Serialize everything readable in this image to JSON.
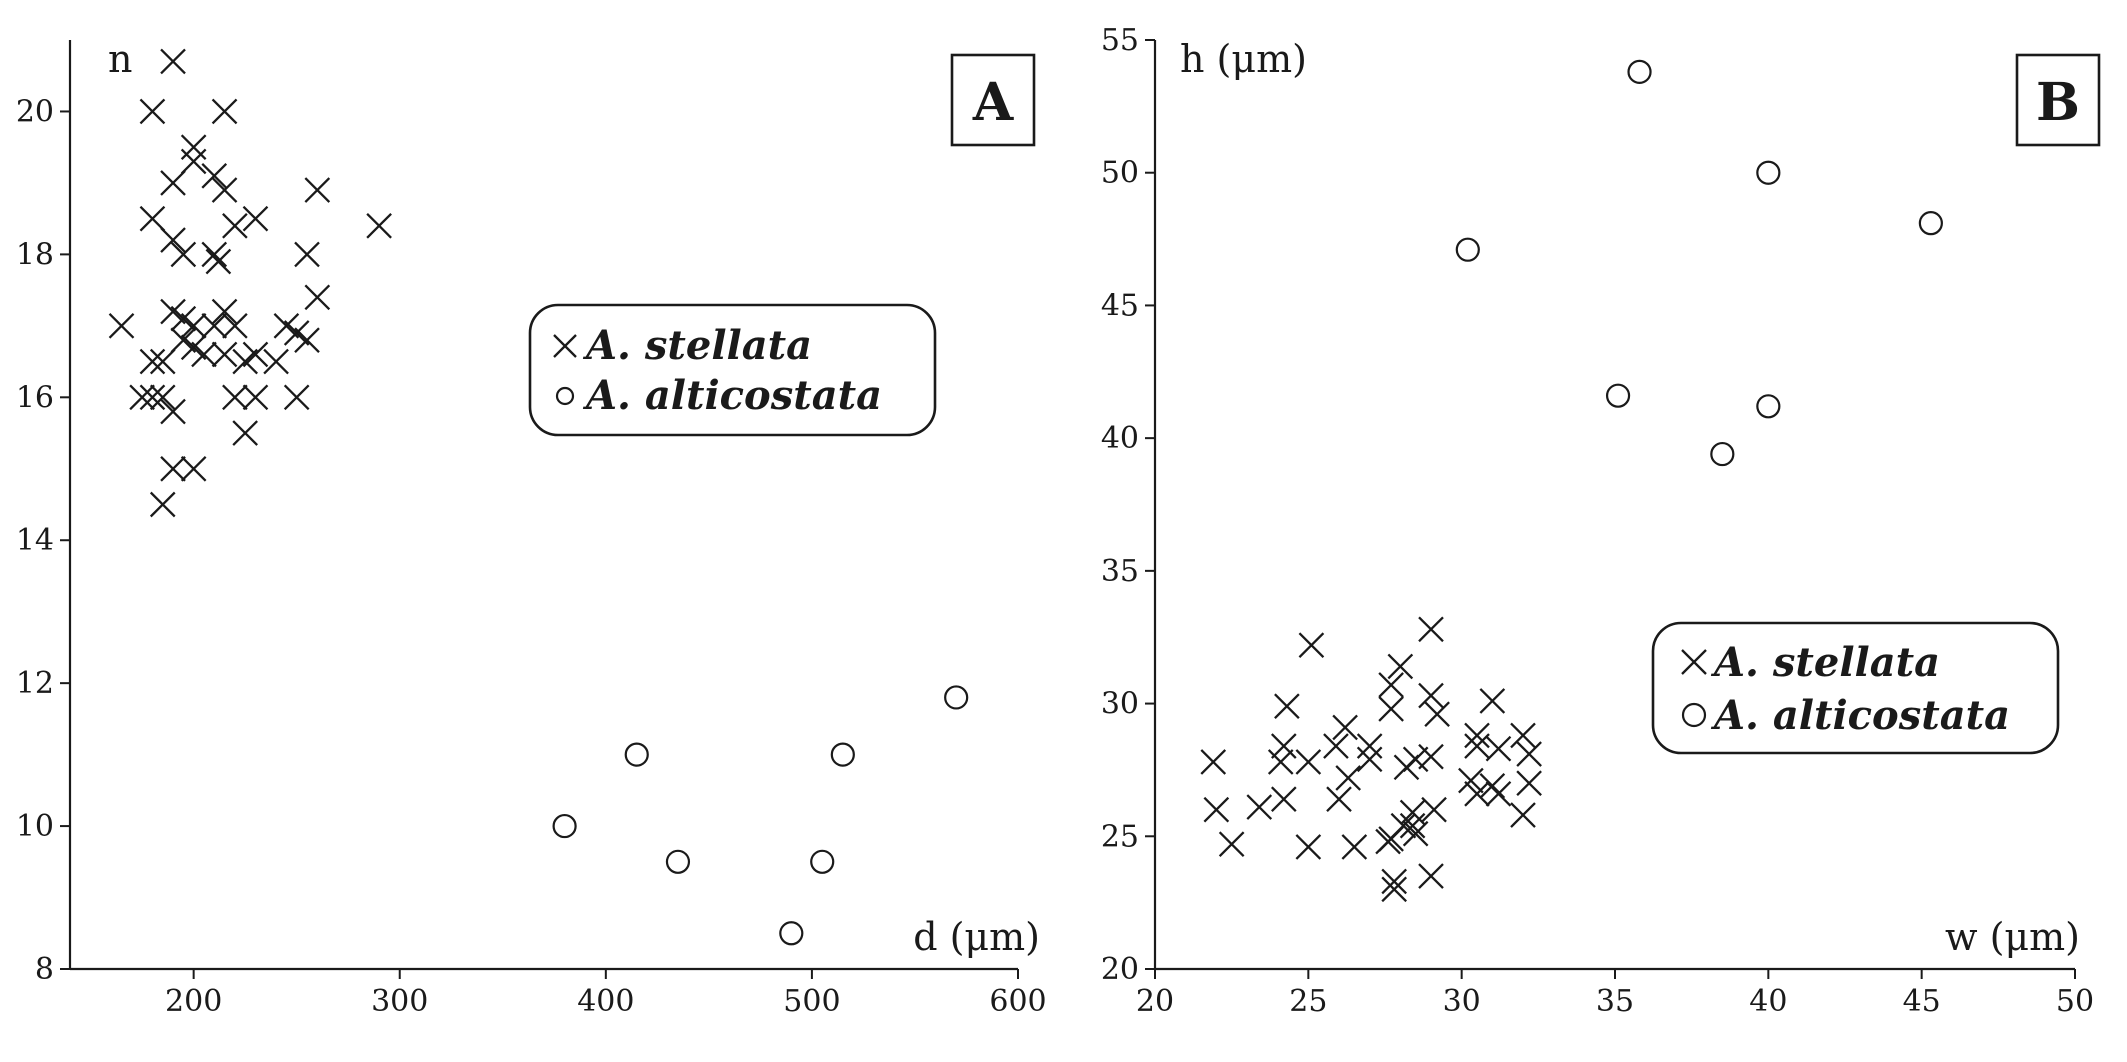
{
  "chart_data": [
    {
      "type": "scatter",
      "panel_label": "A",
      "xlabel": "d (μm)",
      "ylabel": "n",
      "xlim": [
        140,
        600
      ],
      "ylim": [
        8,
        21
      ],
      "xticks": [
        200,
        300,
        400,
        500,
        600
      ],
      "yticks": [
        8,
        10,
        12,
        14,
        16,
        18,
        20
      ],
      "legend": {
        "placement": "center-right"
      },
      "series": [
        {
          "name": "A. stellata",
          "marker": "x",
          "points": [
            [
              190,
              20.7
            ],
            [
              180,
              20.0
            ],
            [
              215,
              20.0
            ],
            [
              200,
              19.5
            ],
            [
              200,
              19.3
            ],
            [
              210,
              19.1
            ],
            [
              190,
              19.0
            ],
            [
              215,
              18.9
            ],
            [
              260,
              18.9
            ],
            [
              180,
              18.5
            ],
            [
              230,
              18.5
            ],
            [
              290,
              18.4
            ],
            [
              220,
              18.4
            ],
            [
              190,
              18.2
            ],
            [
              195,
              18.0
            ],
            [
              210,
              18.0
            ],
            [
              255,
              18.0
            ],
            [
              212,
              17.9
            ],
            [
              260,
              17.4
            ],
            [
              190,
              17.2
            ],
            [
              195,
              17.1
            ],
            [
              215,
              17.2
            ],
            [
              220,
              17.0
            ],
            [
              210,
              17.0
            ],
            [
              200,
              17.0
            ],
            [
              165,
              17.0
            ],
            [
              245,
              17.0
            ],
            [
              250,
              16.9
            ],
            [
              255,
              16.8
            ],
            [
              195,
              16.8
            ],
            [
              200,
              16.7
            ],
            [
              205,
              16.6
            ],
            [
              215,
              16.6
            ],
            [
              230,
              16.6
            ],
            [
              240,
              16.5
            ],
            [
              225,
              16.5
            ],
            [
              180,
              16.5
            ],
            [
              185,
              16.5
            ],
            [
              175,
              16.0
            ],
            [
              180,
              16.0
            ],
            [
              185,
              16.0
            ],
            [
              220,
              16.0
            ],
            [
              230,
              16.0
            ],
            [
              250,
              16.0
            ],
            [
              190,
              15.8
            ],
            [
              225,
              15.5
            ],
            [
              190,
              15.0
            ],
            [
              200,
              15.0
            ],
            [
              185,
              14.5
            ]
          ]
        },
        {
          "name": "A. alticostata",
          "marker": "o",
          "points": [
            [
              570,
              11.8
            ],
            [
              415,
              11.0
            ],
            [
              515,
              11.0
            ],
            [
              380,
              10.0
            ],
            [
              435,
              9.5
            ],
            [
              505,
              9.5
            ],
            [
              490,
              8.5
            ]
          ]
        }
      ]
    },
    {
      "type": "scatter",
      "panel_label": "B",
      "xlabel": "w (μm)",
      "ylabel": "h (μm)",
      "xlim": [
        20,
        50
      ],
      "ylim": [
        20,
        55
      ],
      "xticks": [
        20,
        25,
        30,
        35,
        40,
        45,
        50
      ],
      "yticks": [
        20,
        25,
        30,
        35,
        40,
        45,
        50,
        55
      ],
      "legend": {
        "placement": "lower-right"
      },
      "series": [
        {
          "name": "A. stellata",
          "marker": "x",
          "points": [
            [
              29,
              32.8
            ],
            [
              25.1,
              32.2
            ],
            [
              28,
              31.4
            ],
            [
              31,
              30.1
            ],
            [
              27.7,
              30.7
            ],
            [
              29,
              30.3
            ],
            [
              24.3,
              29.9
            ],
            [
              27.7,
              29.8
            ],
            [
              29.2,
              29.6
            ],
            [
              26.2,
              29.1
            ],
            [
              30.5,
              28.8
            ],
            [
              32,
              28.8
            ],
            [
              24.2,
              28.4
            ],
            [
              25.9,
              28.4
            ],
            [
              27,
              28.4
            ],
            [
              30.5,
              28.4
            ],
            [
              31.2,
              28.3
            ],
            [
              32.2,
              28.1
            ],
            [
              21.9,
              27.8
            ],
            [
              24.1,
              27.8
            ],
            [
              25,
              27.8
            ],
            [
              27,
              27.9
            ],
            [
              28.5,
              27.9
            ],
            [
              29,
              28.0
            ],
            [
              28.2,
              27.6
            ],
            [
              26.3,
              27.2
            ],
            [
              30.3,
              27.1
            ],
            [
              31,
              26.9
            ],
            [
              32.2,
              27.0
            ],
            [
              30.5,
              26.6
            ],
            [
              31.2,
              26.6
            ],
            [
              26,
              26.4
            ],
            [
              24.2,
              26.4
            ],
            [
              23.4,
              26.1
            ],
            [
              22,
              26.0
            ],
            [
              29.1,
              26.0
            ],
            [
              28.4,
              25.9
            ],
            [
              32,
              25.8
            ],
            [
              28.1,
              25.4
            ],
            [
              28.4,
              25.4
            ],
            [
              28.5,
              25.1
            ],
            [
              27.7,
              24.9
            ],
            [
              27.6,
              24.8
            ],
            [
              22.5,
              24.7
            ],
            [
              25,
              24.6
            ],
            [
              26.5,
              24.6
            ],
            [
              29,
              23.5
            ],
            [
              27.8,
              23.3
            ],
            [
              27.8,
              23.0
            ]
          ]
        },
        {
          "name": "A. alticostata",
          "marker": "o",
          "points": [
            [
              35.8,
              53.8
            ],
            [
              40,
              50.0
            ],
            [
              45.3,
              48.1
            ],
            [
              30.2,
              47.1
            ],
            [
              35.1,
              41.6
            ],
            [
              40,
              41.2
            ],
            [
              38.5,
              39.4
            ]
          ]
        }
      ]
    }
  ]
}
